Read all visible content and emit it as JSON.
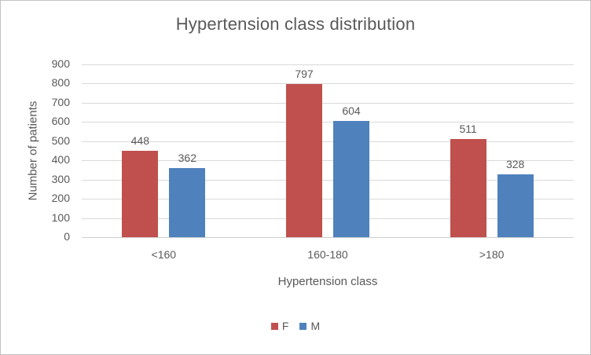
{
  "chart_data": {
    "type": "bar",
    "title": "Hypertension class distribution",
    "xlabel": "Hypertension class",
    "ylabel": "Number of patients",
    "categories": [
      "<160",
      "160-180",
      ">180"
    ],
    "series": [
      {
        "name": "F",
        "color": "#C0504D",
        "values": [
          448,
          797,
          511
        ]
      },
      {
        "name": "M",
        "color": "#4F81BD",
        "values": [
          362,
          604,
          328
        ]
      }
    ],
    "ylim": [
      0,
      900
    ],
    "ytick_step": 100,
    "yticks": [
      0,
      100,
      200,
      300,
      400,
      500,
      600,
      700,
      800,
      900
    ],
    "grid": true,
    "data_labels": true,
    "legend_position": "bottom",
    "colors": {
      "text": "#595959",
      "gridline": "#D9D9D9",
      "frame_border": "#C3C3C3",
      "background": "#FFFFFF"
    }
  }
}
